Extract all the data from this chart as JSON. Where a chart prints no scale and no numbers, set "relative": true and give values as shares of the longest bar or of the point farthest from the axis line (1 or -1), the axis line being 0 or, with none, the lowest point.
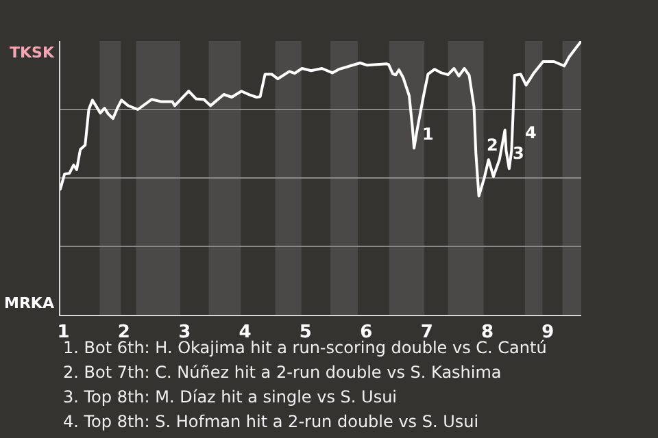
{
  "chart_data": {
    "type": "line",
    "relative": true,
    "x": [
      0.95,
      1.02,
      1.1,
      1.17,
      1.22,
      1.28,
      1.36,
      1.42,
      1.48,
      1.55,
      1.61,
      1.68,
      1.74,
      1.82,
      1.89,
      1.96,
      2.07,
      2.23,
      2.46,
      2.61,
      2.8,
      2.84,
      3.07,
      3.19,
      3.32,
      3.43,
      3.65,
      3.78,
      3.94,
      4.07,
      4.19,
      4.25,
      4.33,
      4.44,
      4.54,
      4.73,
      4.82,
      4.94,
      5.09,
      5.27,
      5.44,
      5.55,
      5.9,
      6.01,
      6.34,
      6.37,
      6.44,
      6.49,
      6.54,
      6.61,
      6.71,
      6.76,
      6.79,
      6.84,
      6.94,
      7.02,
      7.13,
      7.24,
      7.35,
      7.45,
      7.53,
      7.62,
      7.7,
      7.78,
      7.81,
      7.86,
      7.95,
      8.02,
      8.1,
      8.2,
      8.29,
      8.31,
      8.36,
      8.4,
      8.45,
      8.55,
      8.64,
      8.77,
      8.92,
      9.1,
      9.27,
      9.35,
      9.55
    ],
    "series": [
      {
        "color": "#ffffff",
        "values": [
          0.459,
          0.514,
          0.517,
          0.547,
          0.53,
          0.604,
          0.62,
          0.75,
          0.784,
          0.759,
          0.737,
          0.755,
          0.734,
          0.717,
          0.754,
          0.784,
          0.764,
          0.75,
          0.787,
          0.779,
          0.779,
          0.764,
          0.817,
          0.789,
          0.787,
          0.764,
          0.805,
          0.795,
          0.817,
          0.804,
          0.795,
          0.797,
          0.879,
          0.879,
          0.862,
          0.889,
          0.882,
          0.9,
          0.892,
          0.9,
          0.884,
          0.897,
          0.92,
          0.912,
          0.917,
          0.914,
          0.88,
          0.877,
          0.895,
          0.867,
          0.8,
          0.692,
          0.609,
          0.675,
          0.792,
          0.879,
          0.897,
          0.884,
          0.877,
          0.9,
          0.872,
          0.9,
          0.875,
          0.759,
          0.592,
          0.434,
          0.5,
          0.567,
          0.505,
          0.567,
          0.675,
          0.6,
          0.534,
          0.6,
          0.875,
          0.879,
          0.839,
          0.884,
          0.925,
          0.925,
          0.909,
          0.942,
          1
        ]
      }
    ],
    "xlim": [
      0.95,
      9.55
    ],
    "xticks": [
      1,
      2,
      3,
      4,
      5,
      6,
      7,
      8,
      9
    ],
    "grid": "y",
    "line_style": "solid",
    "bands": [
      {
        "axis": "x",
        "from": 1.6,
        "to": 1.95,
        "color": "#4a4947"
      },
      {
        "axis": "x",
        "from": 2.2,
        "to": 2.93,
        "color": "#4a4947"
      },
      {
        "axis": "x",
        "from": 3.4,
        "to": 3.93,
        "color": "#4a4947"
      },
      {
        "axis": "x",
        "from": 4.5,
        "to": 4.93,
        "color": "#4a4947"
      },
      {
        "axis": "x",
        "from": 5.41,
        "to": 5.86,
        "color": "#4a4947"
      },
      {
        "axis": "x",
        "from": 6.38,
        "to": 6.96,
        "color": "#4a4947"
      },
      {
        "axis": "x",
        "from": 7.35,
        "to": 7.94,
        "color": "#4a4947"
      },
      {
        "axis": "x",
        "from": 8.62,
        "to": 8.91,
        "color": "#4a4947"
      },
      {
        "axis": "x",
        "from": 9.24,
        "to": 9.55,
        "color": "#4a4947"
      }
    ],
    "annotations": [
      "TKSK",
      "MRKA",
      {
        "text": "1",
        "x": 6.86,
        "y": 0.66
      },
      {
        "text": "2",
        "x": 7.93,
        "y": 0.62
      },
      {
        "text": "3",
        "x": 8.36,
        "y": 0.59
      },
      {
        "text": "4",
        "x": 8.56,
        "y": 0.665
      },
      "1. Bot 6th: H. Okajima hit a run-scoring double vs C. Cantú",
      "2. Bot 7th: C. Núñez hit a 2-run double vs S. Kashima",
      "3. Top 8th: M. Díaz hit a single vs S. Usui",
      "4. Top 8th: S. Hofman hit a 2-run double vs S. Usui"
    ]
  }
}
